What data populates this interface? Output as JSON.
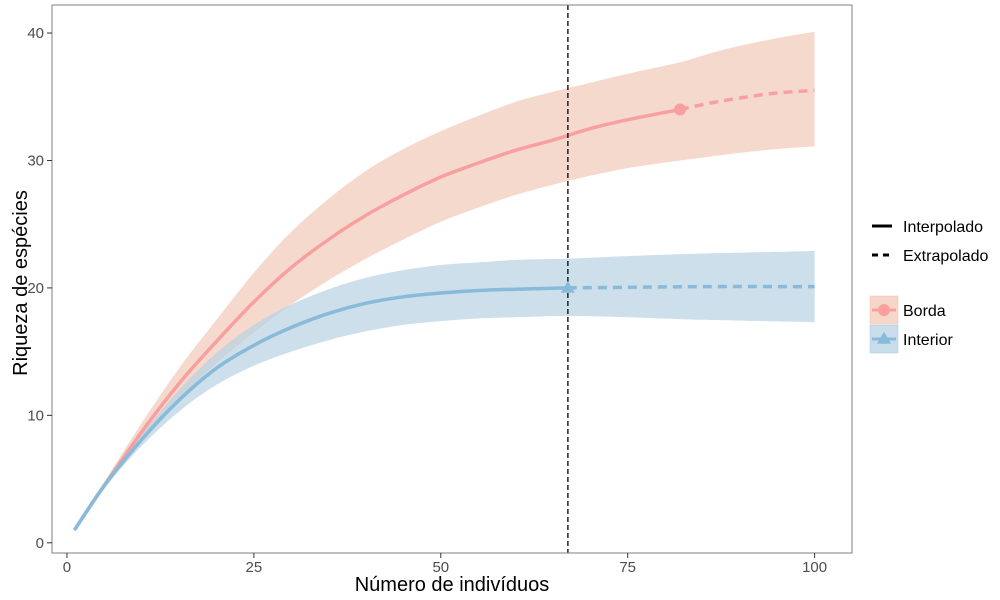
{
  "chart_data": {
    "type": "line",
    "xlabel": "Número de indivíduos",
    "ylabel": "Riqueza de espécies",
    "xlim": [
      -2,
      105
    ],
    "ylim": [
      -0.8,
      42.2
    ],
    "x_ticks": [
      0,
      25,
      50,
      75,
      100
    ],
    "y_ticks": [
      0,
      10,
      20,
      30,
      40
    ],
    "grid": false,
    "reference_line": {
      "x": 67,
      "style": "dashed",
      "color": "#000000"
    },
    "legend": {
      "position": "right",
      "linetype_entries": [
        {
          "label": "Interpolado",
          "dash": "solid"
        },
        {
          "label": "Extrapolado",
          "dash": "dashed"
        }
      ],
      "series_entries": [
        {
          "label": "Borda",
          "color": "#f8a0a0",
          "fill": "#f2c9b8",
          "marker": "circle"
        },
        {
          "label": "Interior",
          "color": "#87bbd9",
          "fill": "#b7d1e3",
          "marker": "triangle"
        }
      ]
    },
    "series": [
      {
        "name": "Borda",
        "line_color": "#f8a0a0",
        "band_color": "#f2c9b8",
        "marker": "circle",
        "observed": {
          "x": 82,
          "y": 34.0
        },
        "interpolated": {
          "x": [
            1,
            5,
            10,
            15,
            20,
            25,
            30,
            35,
            40,
            45,
            50,
            55,
            60,
            65,
            70,
            75,
            82
          ],
          "y": [
            1.0,
            4.5,
            8.7,
            12.5,
            15.8,
            18.9,
            21.6,
            23.8,
            25.7,
            27.3,
            28.7,
            29.8,
            30.8,
            31.6,
            32.5,
            33.2,
            34.0
          ],
          "lower": [
            1.0,
            4.2,
            8.0,
            11.3,
            14.1,
            16.5,
            18.7,
            20.6,
            22.3,
            23.8,
            25.2,
            26.3,
            27.3,
            28.1,
            28.8,
            29.4,
            30.0
          ],
          "upper": [
            1.0,
            4.8,
            9.4,
            13.7,
            17.5,
            21.2,
            24.4,
            27.0,
            29.2,
            30.9,
            32.3,
            33.5,
            34.6,
            35.4,
            36.1,
            36.8,
            37.7
          ]
        },
        "extrapolated": {
          "x": [
            82,
            86,
            90,
            95,
            100
          ],
          "y": [
            34.0,
            34.5,
            34.9,
            35.3,
            35.5
          ],
          "lower": [
            30.0,
            30.3,
            30.6,
            30.9,
            31.1
          ],
          "upper": [
            37.7,
            38.4,
            39.0,
            39.6,
            40.1
          ]
        }
      },
      {
        "name": "Interior",
        "line_color": "#87bbd9",
        "band_color": "#b7d1e3",
        "marker": "triangle",
        "observed": {
          "x": 67,
          "y": 20.0
        },
        "interpolated": {
          "x": [
            1,
            5,
            10,
            15,
            20,
            25,
            30,
            35,
            40,
            45,
            50,
            55,
            60,
            67
          ],
          "y": [
            1.0,
            4.5,
            8.1,
            11.2,
            13.7,
            15.5,
            16.9,
            18.0,
            18.8,
            19.3,
            19.6,
            19.8,
            19.9,
            20.0
          ],
          "lower": [
            1.0,
            4.3,
            7.6,
            10.3,
            12.4,
            13.9,
            15.0,
            15.9,
            16.6,
            17.1,
            17.4,
            17.6,
            17.7,
            17.8
          ],
          "upper": [
            1.0,
            4.7,
            8.5,
            12.0,
            14.9,
            17.1,
            18.7,
            19.9,
            20.8,
            21.4,
            21.8,
            22.0,
            22.2,
            22.3
          ]
        },
        "extrapolated": {
          "x": [
            67,
            75,
            85,
            100
          ],
          "y": [
            20.0,
            20.05,
            20.1,
            20.1
          ],
          "lower": [
            17.8,
            17.7,
            17.5,
            17.3
          ],
          "upper": [
            22.3,
            22.5,
            22.7,
            22.9
          ]
        }
      }
    ]
  }
}
